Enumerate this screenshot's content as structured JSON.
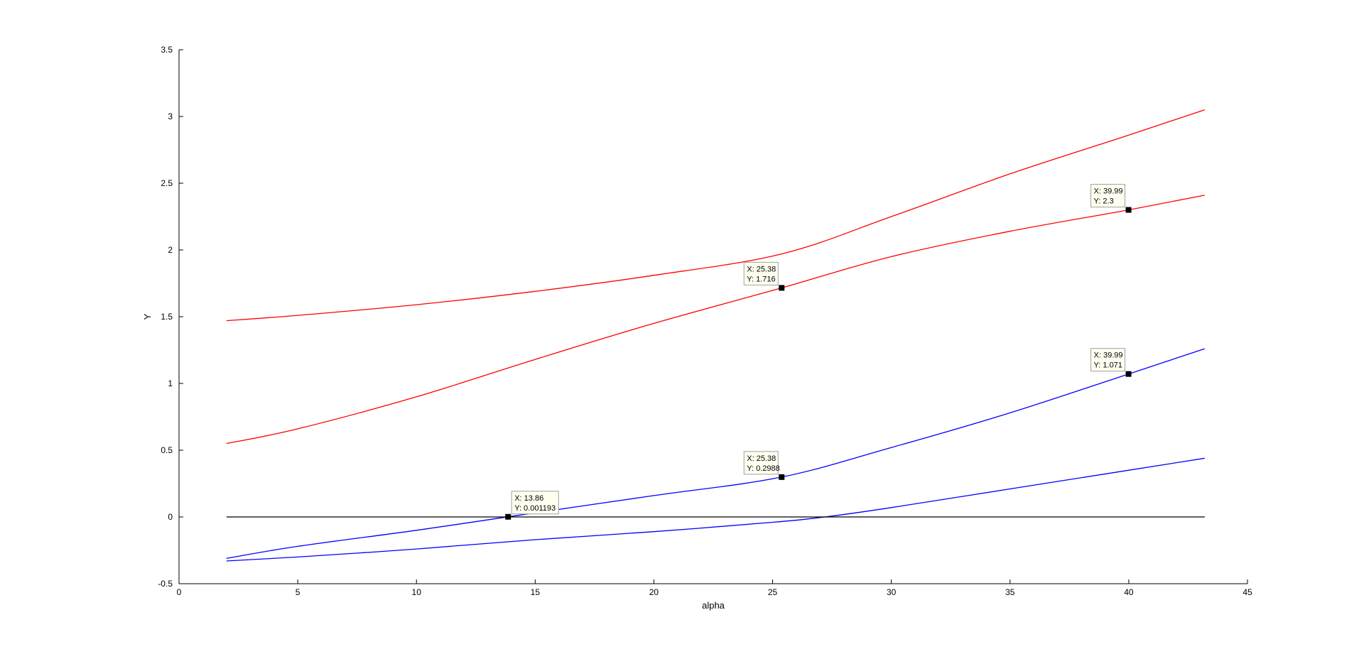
{
  "chart_data": {
    "type": "line",
    "title": "",
    "xlabel": "alpha",
    "ylabel": "Y",
    "xlim": [
      0,
      45
    ],
    "ylim": [
      -0.5,
      3.5
    ],
    "xticks": [
      0,
      5,
      10,
      15,
      20,
      25,
      30,
      35,
      40,
      45
    ],
    "xtick_labels": [
      "0",
      "5",
      "10",
      "15",
      "20",
      "25",
      "30",
      "35",
      "40",
      "45"
    ],
    "yticks": [
      -0.5,
      0,
      0.5,
      1,
      1.5,
      2,
      2.5,
      3,
      3.5
    ],
    "ytick_labels": [
      "-0.5",
      "0",
      "0.5",
      "1",
      "1.5",
      "2",
      "2.5",
      "3",
      "3.5"
    ],
    "grid": false,
    "series": [
      {
        "color": "#ff0000",
        "points": [
          [
            2,
            1.47
          ],
          [
            5,
            1.51
          ],
          [
            10,
            1.59
          ],
          [
            15,
            1.69
          ],
          [
            20,
            1.81
          ],
          [
            25.38,
            1.97
          ],
          [
            30,
            2.25
          ],
          [
            35,
            2.57
          ],
          [
            40,
            2.86
          ],
          [
            43.2,
            3.05
          ]
        ]
      },
      {
        "color": "#ff0000",
        "points": [
          [
            2,
            0.55
          ],
          [
            5,
            0.66
          ],
          [
            10,
            0.9
          ],
          [
            15,
            1.18
          ],
          [
            20,
            1.45
          ],
          [
            25.38,
            1.716
          ],
          [
            30,
            1.95
          ],
          [
            35,
            2.14
          ],
          [
            39.99,
            2.3
          ],
          [
            43.2,
            2.41
          ]
        ]
      },
      {
        "color": "#0000ff",
        "points": [
          [
            2,
            -0.31
          ],
          [
            5,
            -0.22
          ],
          [
            10,
            -0.1
          ],
          [
            13.86,
            0.001193
          ],
          [
            20,
            0.16
          ],
          [
            25.38,
            0.2988
          ],
          [
            30,
            0.52
          ],
          [
            35,
            0.78
          ],
          [
            39.99,
            1.071
          ],
          [
            43.2,
            1.26
          ]
        ]
      },
      {
        "color": "#0000ff",
        "points": [
          [
            2,
            -0.33
          ],
          [
            5,
            -0.3
          ],
          [
            10,
            -0.24
          ],
          [
            15,
            -0.17
          ],
          [
            20,
            -0.11
          ],
          [
            25,
            -0.04
          ],
          [
            27.2,
            0.0
          ],
          [
            30,
            0.07
          ],
          [
            35,
            0.21
          ],
          [
            40,
            0.35
          ],
          [
            43.2,
            0.44
          ]
        ]
      },
      {
        "color": "#000000",
        "points": [
          [
            2,
            0
          ],
          [
            43.2,
            0
          ]
        ]
      }
    ],
    "datatips": [
      {
        "x": 13.86,
        "y": 0.001193,
        "x_text": "X: 13.86",
        "y_text": "Y: 0.001193",
        "side": "right"
      },
      {
        "x": 25.38,
        "y": 0.2988,
        "x_text": "X: 25.38",
        "y_text": "Y: 0.2988",
        "side": "left"
      },
      {
        "x": 25.38,
        "y": 1.716,
        "x_text": "X: 25.38",
        "y_text": "Y: 1.716",
        "side": "left"
      },
      {
        "x": 39.99,
        "y": 1.071,
        "x_text": "X: 39.99",
        "y_text": "Y: 1.071",
        "side": "left"
      },
      {
        "x": 39.99,
        "y": 2.3,
        "x_text": "X: 39.99",
        "y_text": "Y: 2.3",
        "side": "left"
      }
    ]
  }
}
